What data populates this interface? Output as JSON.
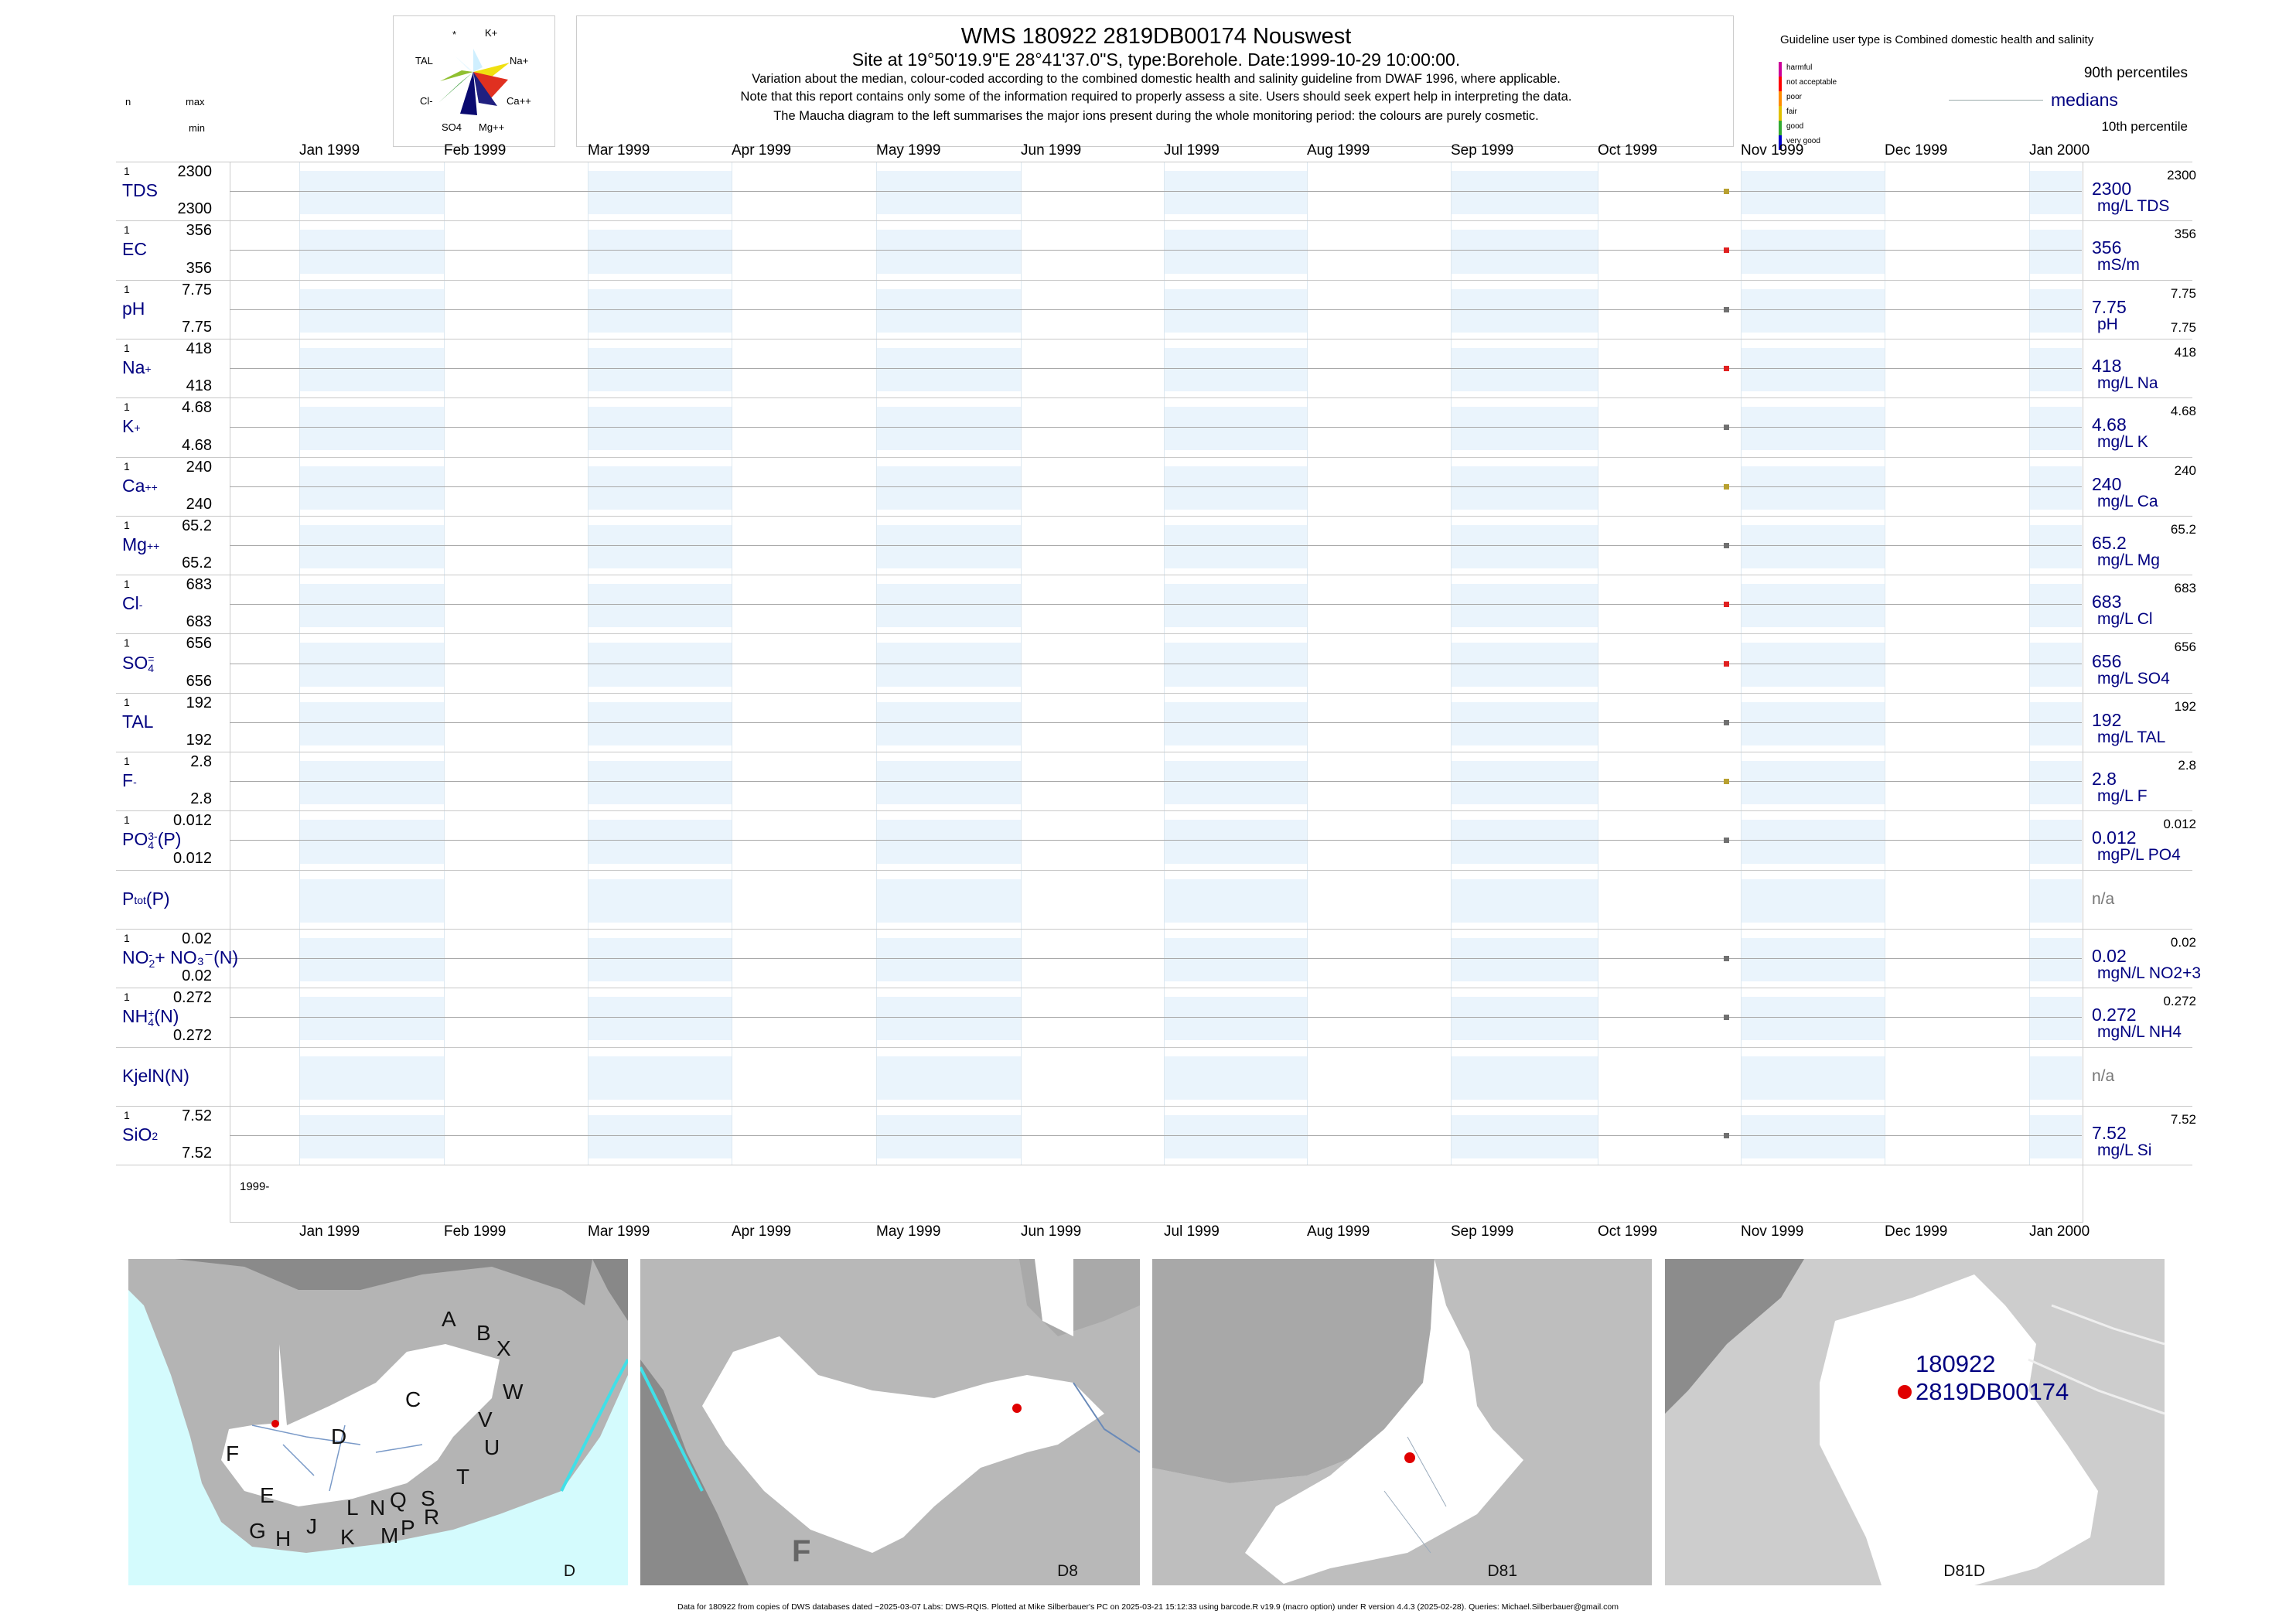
{
  "header": {
    "title": "WMS 180922 2819DB00174 Nouswest",
    "site_line": "Site at 19°50'19.9\"E 28°41'37.0\"S, type:Borehole. Date:1999-10-29 10:00:00.",
    "note1": "Variation about the median,  colour-coded according to the combined domestic health and salinity guideline from DWAF 1996, where applicable.",
    "note2": "Note that this report contains only some of the information required to properly assess a site. Users should seek expert help in interpreting the data.",
    "note3": "The Maucha diagram to the left summarises the major ions present during the whole monitoring period: the colours are purely cosmetic."
  },
  "left_header": {
    "n": "n",
    "max": "max",
    "min": "min"
  },
  "maucha": {
    "labels": [
      "*",
      "K+",
      "TAL",
      "Na+",
      "Cl-",
      "Ca++",
      "SO4",
      "Mg++"
    ]
  },
  "legend": {
    "guideline": "Guideline user type is Combined domestic health and salinity",
    "classes": [
      {
        "label": "harmful",
        "color": "#cc0099"
      },
      {
        "label": "not acceptable",
        "color": "#ff0000"
      },
      {
        "label": "poor",
        "color": "#ff8c00"
      },
      {
        "label": "fair",
        "color": "#e0c000"
      },
      {
        "label": "good",
        "color": "#33aa33"
      },
      {
        "label": "very good",
        "color": "#0000cc"
      }
    ],
    "p90": "90th percentiles",
    "medians": "medians",
    "p10": "10th percentile"
  },
  "months": [
    "Jan 1999",
    "Feb 1999",
    "Mar 1999",
    "Apr 1999",
    "May 1999",
    "Jun 1999",
    "Jul 1999",
    "Aug 1999",
    "Sep 1999",
    "Oct 1999",
    "Nov 1999",
    "Dec 1999",
    "Jan 2000"
  ],
  "year_label": "1999-",
  "chart_data": {
    "type": "scatter",
    "x_range": [
      "1999-01-01",
      "2000-01-01"
    ],
    "sample_date": "1999-10-29",
    "series": [
      {
        "label": "TDS",
        "sup": "",
        "sub": "",
        "tail": "",
        "n": "1",
        "max": "2300",
        "min": "2300",
        "median": "2300",
        "unit": "mg/L TDS",
        "right_max": "2300",
        "right_min": "",
        "value": 2300,
        "color": "#b8a030"
      },
      {
        "label": "EC",
        "sup": "",
        "sub": "",
        "tail": "",
        "n": "1",
        "max": "356",
        "min": "356",
        "median": "356",
        "unit": "mS/m",
        "right_max": "356",
        "right_min": "",
        "value": 356,
        "color": "#e02020"
      },
      {
        "label": "pH",
        "sup": "",
        "sub": "",
        "tail": "",
        "n": "1",
        "max": "7.75",
        "min": "7.75",
        "median": "7.75",
        "unit": "pH",
        "right_max": "7.75",
        "right_min": "7.75",
        "value": 7.75,
        "color": "#707070"
      },
      {
        "label": "Na",
        "sup": "+",
        "sub": "",
        "tail": "",
        "n": "1",
        "max": "418",
        "min": "418",
        "median": "418",
        "unit": "mg/L Na",
        "right_max": "418",
        "right_min": "",
        "value": 418,
        "color": "#e02020"
      },
      {
        "label": "K",
        "sup": "+",
        "sub": "",
        "tail": "",
        "n": "1",
        "max": "4.68",
        "min": "4.68",
        "median": "4.68",
        "unit": "mg/L K",
        "right_max": "4.68",
        "right_min": "",
        "value": 4.68,
        "color": "#707070"
      },
      {
        "label": "Ca",
        "sup": "++",
        "sub": "",
        "tail": "",
        "n": "1",
        "max": "240",
        "min": "240",
        "median": "240",
        "unit": "mg/L Ca",
        "right_max": "240",
        "right_min": "",
        "value": 240,
        "color": "#b8a030"
      },
      {
        "label": "Mg",
        "sup": "++",
        "sub": "",
        "tail": "",
        "n": "1",
        "max": "65.2",
        "min": "65.2",
        "median": "65.2",
        "unit": "mg/L Mg",
        "right_max": "65.2",
        "right_min": "",
        "value": 65.2,
        "color": "#707070"
      },
      {
        "label": "Cl",
        "sup": "-",
        "sub": "",
        "tail": "",
        "n": "1",
        "max": "683",
        "min": "683",
        "median": "683",
        "unit": "mg/L Cl",
        "right_max": "683",
        "right_min": "",
        "value": 683,
        "color": "#e02020"
      },
      {
        "label": "SO",
        "sup": "=",
        "sub": "4",
        "tail": "",
        "n": "1",
        "max": "656",
        "min": "656",
        "median": "656",
        "unit": "mg/L SO4",
        "right_max": "656",
        "right_min": "",
        "value": 656,
        "color": "#e02020"
      },
      {
        "label": "TAL",
        "sup": "",
        "sub": "",
        "tail": "",
        "n": "1",
        "max": "192",
        "min": "192",
        "median": "192",
        "unit": "mg/L TAL",
        "right_max": "192",
        "right_min": "",
        "value": 192,
        "color": "#707070"
      },
      {
        "label": "F",
        "sup": "-",
        "sub": "",
        "tail": "",
        "n": "1",
        "max": "2.8",
        "min": "2.8",
        "median": "2.8",
        "unit": "mg/L F",
        "right_max": "2.8",
        "right_min": "",
        "value": 2.8,
        "color": "#b8a030"
      },
      {
        "label": "PO",
        "sup": "3-",
        "sub": "4",
        "tail": "(P)",
        "n": "1",
        "max": "0.012",
        "min": "0.012",
        "median": "0.012",
        "unit": "mgP/L PO4",
        "right_max": "0.012",
        "right_min": "",
        "value": 0.012,
        "color": "#707070"
      },
      {
        "label": "P",
        "sup": "",
        "sub": "tot",
        "tail": "(P)",
        "n": "",
        "max": "",
        "min": "",
        "median": "n/a",
        "unit": "",
        "right_max": "",
        "right_min": "",
        "value": null,
        "color": "#707070"
      },
      {
        "label": "NO",
        "sup": "-",
        "sub": "2",
        "tail": "+ NO₃⁻(N)",
        "n": "1",
        "max": "0.02",
        "min": "0.02",
        "median": "0.02",
        "unit": "mgN/L NO2+3",
        "right_max": "0.02",
        "right_min": "",
        "value": 0.02,
        "color": "#707070"
      },
      {
        "label": "NH",
        "sup": "+",
        "sub": "4",
        "tail": "(N)",
        "n": "1",
        "max": "0.272",
        "min": "0.272",
        "median": "0.272",
        "unit": "mgN/L NH4",
        "right_max": "0.272",
        "right_min": "",
        "value": 0.272,
        "color": "#707070"
      },
      {
        "label": "KjelN(N)",
        "sup": "",
        "sub": "",
        "tail": "",
        "n": "",
        "max": "",
        "min": "",
        "median": "n/a",
        "unit": "",
        "right_max": "",
        "right_min": "",
        "value": null,
        "color": "#707070"
      },
      {
        "label": "SiO",
        "sup": "",
        "sub": "2",
        "tail": "",
        "n": "1",
        "max": "7.52",
        "min": "7.52",
        "median": "7.52",
        "unit": "mg/L Si",
        "right_max": "7.52",
        "right_min": "",
        "value": 7.52,
        "color": "#707070"
      }
    ]
  },
  "maps": [
    {
      "caption": "D",
      "regions": [
        "A",
        "B",
        "X",
        "C",
        "W",
        "V",
        "U",
        "D",
        "F",
        "T",
        "E",
        "L",
        "N",
        "Q",
        "S",
        "R",
        "G",
        "H",
        "J",
        "K",
        "M",
        "P"
      ]
    },
    {
      "caption": "D8",
      "regions": [
        "F"
      ]
    },
    {
      "caption": "D81",
      "regions": []
    },
    {
      "caption": "D81D",
      "regions": [],
      "site_id": "180922",
      "site_code": "2819DB00174"
    }
  ],
  "footer": "Data for 180922 from copies of DWS databases dated ~2025-03-07 Labs: DWS-RQIS. Plotted at Mike Silberbauer's PC on 2025-03-21 15:12:33 using barcode.R v19.9 (macro option) under R version 4.4.3 (2025-02-28). Queries: Michael.Silberbauer@gmail.com"
}
